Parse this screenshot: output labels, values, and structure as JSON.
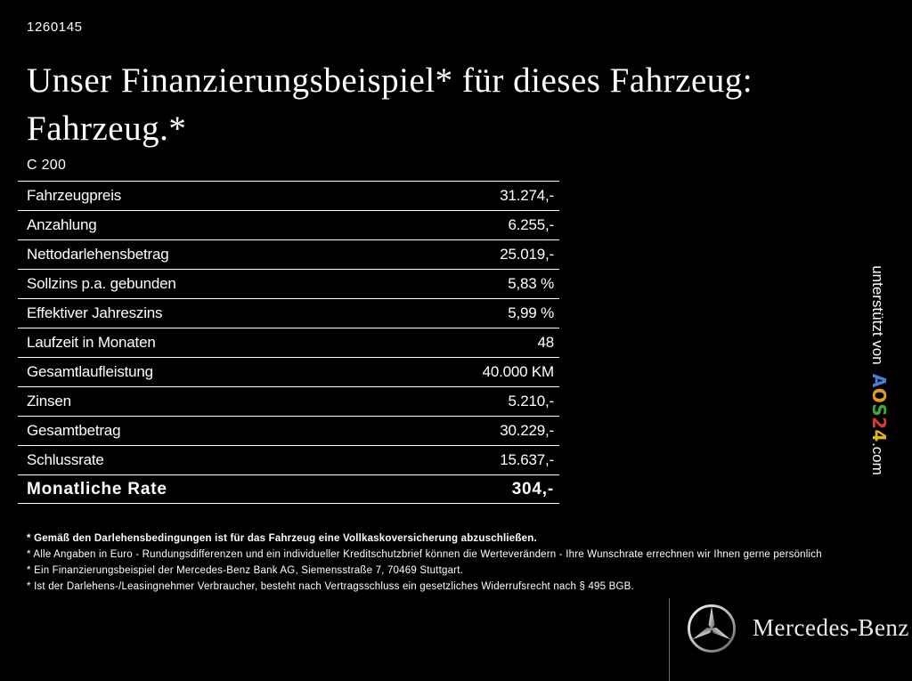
{
  "page": {
    "ref_number": "1260145",
    "bg_color": "#000000",
    "text_color": "#ffffff"
  },
  "headline": {
    "line1": "Unser Finanzierungsbeispiel* für dieses Fahrzeug:",
    "line2": "Fahrzeug.*"
  },
  "vehicle_model": "C 200",
  "finance_table": {
    "rows": [
      {
        "label": "Fahrzeugpreis",
        "value": "31.274,-",
        "emphasis": false
      },
      {
        "label": "Anzahlung",
        "value": "6.255,-",
        "emphasis": false
      },
      {
        "label": "Nettodarlehensbetrag",
        "value": "25.019,-",
        "emphasis": false
      },
      {
        "label": "Sollzins p.a. gebunden",
        "value": "5,83 %",
        "emphasis": false
      },
      {
        "label": "Effektiver Jahreszins",
        "value": "5,99 %",
        "emphasis": false
      },
      {
        "label": "Laufzeit in Monaten",
        "value": "48",
        "emphasis": false
      },
      {
        "label": "Gesamtlaufleistung",
        "value": "40.000 KM",
        "emphasis": false
      },
      {
        "label": "Zinsen",
        "value": "5.210,-",
        "emphasis": false
      },
      {
        "label": "Gesamtbetrag",
        "value": "30.229,-",
        "emphasis": false
      },
      {
        "label": "Schlussrate",
        "value": "15.637,-",
        "emphasis": false
      },
      {
        "label": "Monatliche Rate",
        "value": "304,-",
        "emphasis": true
      }
    ]
  },
  "footnotes": [
    {
      "text": "* Gemäß den Darlehensbedingungen ist für das Fahrzeug eine Vollkaskoversicherung abzuschließen.",
      "bold": true
    },
    {
      "text": "* Alle Angaben in Euro - Rundungsdifferenzen und ein individueller Kreditschutzbrief können die Werteverändern - Ihre Wunschrate errechnen wir Ihnen gerne persönlich",
      "bold": false
    },
    {
      "text": "* Ein Finanzierungsbeispiel der Mercedes-Benz Bank AG, Siemensstraße 7, 70469 Stuttgart.",
      "bold": false
    },
    {
      "text": "* Ist der Darlehens-/Leasingnehmer Verbraucher, besteht nach Vertragsschluss ein gesetzliches Widerrufsrecht nach § 495 BGB.",
      "bold": false
    }
  ],
  "sponsor": {
    "prefix": "unterstützt von",
    "brand_letters": [
      {
        "char": "A",
        "color": "#4a7fd6"
      },
      {
        "char": "O",
        "color": "#e09a2e"
      },
      {
        "char": "S",
        "color": "#3ea83e"
      },
      {
        "char": "2",
        "color": "#d43c32"
      },
      {
        "char": "4",
        "color": "#d9b32c"
      }
    ],
    "suffix": ".com"
  },
  "brand": {
    "name": "Mercedes-Benz",
    "star_icon": "mercedes-star-icon",
    "logo_silver_light": "#f5f5f5",
    "logo_silver_dark": "#6a6a6a"
  }
}
